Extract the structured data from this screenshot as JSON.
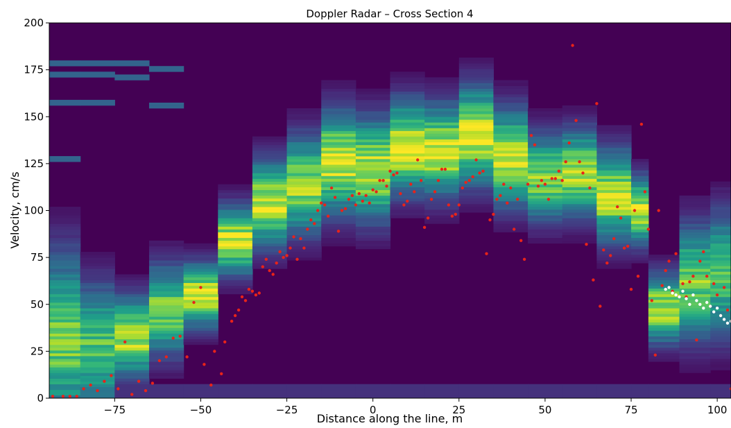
{
  "chart_data": {
    "type": "heatmap",
    "title": "Doppler Radar – Cross Section 4",
    "xlabel": "Distance along the line, m",
    "ylabel": "Velocity, cm/s",
    "xlim": [
      -94,
      104
    ],
    "ylim": [
      0,
      200
    ],
    "xticks": [
      -75,
      -50,
      -25,
      0,
      25,
      50,
      75,
      100
    ],
    "xtick_labels": [
      "−75",
      "−50",
      "−25",
      "0",
      "25",
      "50",
      "75",
      "100"
    ],
    "yticks": [
      0,
      25,
      50,
      75,
      100,
      125,
      150,
      175,
      200
    ],
    "colormap": "viridis",
    "colormap_stops": [
      "#440154",
      "#482878",
      "#3e4989",
      "#31688e",
      "#26828e",
      "#1f9e89",
      "#35b779",
      "#6ece58",
      "#b5de2b",
      "#fde725"
    ],
    "spectrum_columns": [
      {
        "x_start": -94,
        "x_end": -85,
        "peak_velocity": 32,
        "spread": 30,
        "peak_intensity": 0.78,
        "faint_lines": [
          128,
          157,
          172,
          179
        ]
      },
      {
        "x_start": -85,
        "x_end": -75,
        "peak_velocity": 28,
        "spread": 22,
        "peak_intensity": 0.72,
        "faint_lines": [
          157,
          172,
          179
        ]
      },
      {
        "x_start": -75,
        "x_end": -65,
        "peak_velocity": 33,
        "spread": 14,
        "peak_intensity": 0.9,
        "faint_lines": [
          171,
          178
        ]
      },
      {
        "x_start": -65,
        "x_end": -55,
        "peak_velocity": 47,
        "spread": 16,
        "peak_intensity": 0.78,
        "faint_lines": [
          156,
          176
        ]
      },
      {
        "x_start": -55,
        "x_end": -45,
        "peak_velocity": 55,
        "spread": 11,
        "peak_intensity": 0.95,
        "faint_lines": []
      },
      {
        "x_start": -45,
        "x_end": -35,
        "peak_velocity": 84,
        "spread": 12,
        "peak_intensity": 0.92,
        "faint_lines": []
      },
      {
        "x_start": -35,
        "x_end": -25,
        "peak_velocity": 104,
        "spread": 15,
        "peak_intensity": 0.92,
        "faint_lines": []
      },
      {
        "x_start": -25,
        "x_end": -15,
        "peak_velocity": 114,
        "spread": 17,
        "peak_intensity": 0.85,
        "faint_lines": []
      },
      {
        "x_start": -15,
        "x_end": -5,
        "peak_velocity": 126,
        "spread": 18,
        "peak_intensity": 0.93,
        "faint_lines": []
      },
      {
        "x_start": -5,
        "x_end": 5,
        "peak_velocity": 122,
        "spread": 18,
        "peak_intensity": 0.9,
        "faint_lines": []
      },
      {
        "x_start": 5,
        "x_end": 15,
        "peak_velocity": 134,
        "spread": 16,
        "peak_intensity": 0.98,
        "faint_lines": []
      },
      {
        "x_start": 15,
        "x_end": 25,
        "peak_velocity": 132,
        "spread": 16,
        "peak_intensity": 0.95,
        "faint_lines": []
      },
      {
        "x_start": 25,
        "x_end": 35,
        "peak_velocity": 140,
        "spread": 17,
        "peak_intensity": 0.98,
        "faint_lines": []
      },
      {
        "x_start": 35,
        "x_end": 45,
        "peak_velocity": 128,
        "spread": 17,
        "peak_intensity": 0.9,
        "faint_lines": []
      },
      {
        "x_start": 45,
        "x_end": 55,
        "peak_velocity": 118,
        "spread": 15,
        "peak_intensity": 0.82,
        "faint_lines": []
      },
      {
        "x_start": 55,
        "x_end": 65,
        "peak_velocity": 120,
        "spread": 15,
        "peak_intensity": 0.88,
        "faint_lines": []
      },
      {
        "x_start": 65,
        "x_end": 75,
        "peak_velocity": 108,
        "spread": 16,
        "peak_intensity": 0.9,
        "faint_lines": []
      },
      {
        "x_start": 75,
        "x_end": 80,
        "peak_velocity": 100,
        "spread": 12,
        "peak_intensity": 0.9,
        "faint_lines": []
      },
      {
        "x_start": 80,
        "x_end": 89,
        "peak_velocity": 48,
        "spread": 12,
        "peak_intensity": 0.9,
        "faint_lines": []
      },
      {
        "x_start": 89,
        "x_end": 98,
        "peak_velocity": 62,
        "spread": 20,
        "peak_intensity": 0.78,
        "faint_lines": []
      },
      {
        "x_start": 98,
        "x_end": 104,
        "peak_velocity": 66,
        "spread": 22,
        "peak_intensity": 0.72,
        "faint_lines": []
      }
    ],
    "red_points": [
      [
        -93,
        1
      ],
      [
        -90,
        1
      ],
      [
        -88,
        1
      ],
      [
        -86,
        1
      ],
      [
        -84,
        5
      ],
      [
        -82,
        7
      ],
      [
        -80,
        4
      ],
      [
        -78,
        9
      ],
      [
        -76,
        12
      ],
      [
        -74,
        5
      ],
      [
        -72,
        30
      ],
      [
        -70,
        2
      ],
      [
        -68,
        9
      ],
      [
        -66,
        4
      ],
      [
        -64,
        8
      ],
      [
        -62,
        20
      ],
      [
        -60,
        22
      ],
      [
        -58,
        32
      ],
      [
        -56,
        33
      ],
      [
        -54,
        22
      ],
      [
        -52,
        51
      ],
      [
        -50,
        59
      ],
      [
        -49,
        18
      ],
      [
        -47,
        7
      ],
      [
        -46,
        25
      ],
      [
        -44,
        13
      ],
      [
        -43,
        30
      ],
      [
        -41,
        41
      ],
      [
        -40,
        44
      ],
      [
        -39,
        47
      ],
      [
        -38,
        54
      ],
      [
        -37,
        52
      ],
      [
        -36,
        58
      ],
      [
        -35,
        57
      ],
      [
        -34,
        55
      ],
      [
        -33,
        56
      ],
      [
        -32,
        70
      ],
      [
        -31,
        74
      ],
      [
        -30,
        68
      ],
      [
        -29,
        66
      ],
      [
        -28,
        72
      ],
      [
        -27,
        78
      ],
      [
        -26,
        75
      ],
      [
        -25,
        76
      ],
      [
        -24,
        80
      ],
      [
        -23,
        86
      ],
      [
        -22,
        74
      ],
      [
        -21,
        85
      ],
      [
        -20,
        80
      ],
      [
        -19,
        90
      ],
      [
        -18,
        95
      ],
      [
        -17,
        93
      ],
      [
        -16,
        100
      ],
      [
        -15,
        104
      ],
      [
        -14,
        103
      ],
      [
        -13,
        97
      ],
      [
        -12,
        112
      ],
      [
        -11,
        107
      ],
      [
        -10,
        89
      ],
      [
        -9,
        100
      ],
      [
        -8,
        101
      ],
      [
        -7,
        106
      ],
      [
        -6,
        108
      ],
      [
        -5,
        103
      ],
      [
        -4,
        109
      ],
      [
        -3,
        105
      ],
      [
        -2,
        108
      ],
      [
        -1,
        104
      ],
      [
        0,
        111
      ],
      [
        1,
        110
      ],
      [
        2,
        116
      ],
      [
        3,
        116
      ],
      [
        4,
        113
      ],
      [
        5,
        121
      ],
      [
        6,
        119
      ],
      [
        7,
        120
      ],
      [
        8,
        109
      ],
      [
        9,
        103
      ],
      [
        10,
        105
      ],
      [
        11,
        114
      ],
      [
        12,
        110
      ],
      [
        13,
        127
      ],
      [
        14,
        116
      ],
      [
        15,
        91
      ],
      [
        16,
        96
      ],
      [
        17,
        106
      ],
      [
        18,
        110
      ],
      [
        19,
        116
      ],
      [
        20,
        122
      ],
      [
        21,
        122
      ],
      [
        22,
        103
      ],
      [
        23,
        97
      ],
      [
        24,
        98
      ],
      [
        25,
        103
      ],
      [
        26,
        112
      ],
      [
        27,
        115
      ],
      [
        28,
        116
      ],
      [
        29,
        118
      ],
      [
        30,
        127
      ],
      [
        31,
        120
      ],
      [
        32,
        121
      ],
      [
        33,
        77
      ],
      [
        34,
        95
      ],
      [
        35,
        98
      ],
      [
        36,
        106
      ],
      [
        37,
        108
      ],
      [
        38,
        114
      ],
      [
        39,
        104
      ],
      [
        40,
        112
      ],
      [
        41,
        90
      ],
      [
        42,
        106
      ],
      [
        43,
        84
      ],
      [
        44,
        74
      ],
      [
        45,
        114
      ],
      [
        46,
        140
      ],
      [
        47,
        135
      ],
      [
        48,
        113
      ],
      [
        49,
        116
      ],
      [
        50,
        114
      ],
      [
        51,
        106
      ],
      [
        52,
        117
      ],
      [
        53,
        117
      ],
      [
        54,
        121
      ],
      [
        55,
        116
      ],
      [
        56,
        126
      ],
      [
        57,
        136
      ],
      [
        58,
        188
      ],
      [
        59,
        148
      ],
      [
        60,
        126
      ],
      [
        61,
        120
      ],
      [
        62,
        82
      ],
      [
        63,
        112
      ],
      [
        64,
        63
      ],
      [
        65,
        157
      ],
      [
        66,
        49
      ],
      [
        67,
        79
      ],
      [
        68,
        72
      ],
      [
        69,
        76
      ],
      [
        70,
        85
      ],
      [
        71,
        102
      ],
      [
        72,
        96
      ],
      [
        73,
        80
      ],
      [
        74,
        81
      ],
      [
        75,
        58
      ],
      [
        76,
        100
      ],
      [
        77,
        65
      ],
      [
        78,
        146
      ],
      [
        79,
        110
      ],
      [
        80,
        90
      ],
      [
        81,
        52
      ],
      [
        82,
        23
      ],
      [
        83,
        100
      ],
      [
        84,
        60
      ],
      [
        85,
        68
      ],
      [
        86,
        73
      ],
      [
        87,
        57
      ],
      [
        88,
        77
      ],
      [
        89,
        54
      ],
      [
        90,
        61
      ],
      [
        91,
        54
      ],
      [
        92,
        62
      ],
      [
        93,
        65
      ],
      [
        94,
        31
      ],
      [
        95,
        73
      ],
      [
        96,
        78
      ],
      [
        97,
        65
      ],
      [
        98,
        49
      ],
      [
        99,
        61
      ],
      [
        100,
        55
      ],
      [
        101,
        44
      ],
      [
        102,
        59
      ],
      [
        103,
        47
      ],
      [
        104,
        5
      ]
    ],
    "white_points": [
      [
        85,
        58
      ],
      [
        86,
        59
      ],
      [
        87,
        56
      ],
      [
        88,
        55
      ],
      [
        89,
        54
      ],
      [
        90,
        57
      ],
      [
        91,
        53
      ],
      [
        92,
        50
      ],
      [
        93,
        55
      ],
      [
        94,
        52
      ],
      [
        95,
        50
      ],
      [
        96,
        48
      ],
      [
        97,
        51
      ],
      [
        98,
        49
      ],
      [
        99,
        46
      ],
      [
        100,
        48
      ],
      [
        101,
        44
      ],
      [
        102,
        42
      ],
      [
        103,
        40
      ],
      [
        104,
        41
      ]
    ]
  }
}
